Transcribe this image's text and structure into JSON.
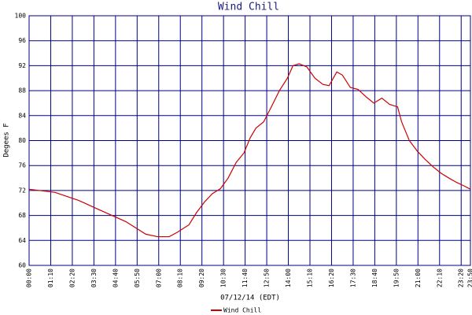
{
  "chart_data": {
    "type": "line",
    "title": "Wind Chill",
    "x_label": "07/12/14 (EDT)",
    "y_label": "Degees F",
    "xlim": [
      0,
      1430
    ],
    "ylim": [
      60,
      100
    ],
    "xticks": [
      {
        "value": 0,
        "label": "00:00"
      },
      {
        "value": 70,
        "label": "01:10"
      },
      {
        "value": 140,
        "label": "02:20"
      },
      {
        "value": 210,
        "label": "03:30"
      },
      {
        "value": 280,
        "label": "04:40"
      },
      {
        "value": 350,
        "label": "05:50"
      },
      {
        "value": 420,
        "label": "07:00"
      },
      {
        "value": 490,
        "label": "08:10"
      },
      {
        "value": 560,
        "label": "09:20"
      },
      {
        "value": 630,
        "label": "10:30"
      },
      {
        "value": 700,
        "label": "11:40"
      },
      {
        "value": 770,
        "label": "12:50"
      },
      {
        "value": 840,
        "label": "14:00"
      },
      {
        "value": 910,
        "label": "15:10"
      },
      {
        "value": 980,
        "label": "16:20"
      },
      {
        "value": 1050,
        "label": "17:30"
      },
      {
        "value": 1120,
        "label": "18:40"
      },
      {
        "value": 1190,
        "label": "19:50"
      },
      {
        "value": 1260,
        "label": "21:00"
      },
      {
        "value": 1330,
        "label": "22:10"
      },
      {
        "value": 1400,
        "label": "23:20"
      },
      {
        "value": 1430,
        "label": "23:50"
      }
    ],
    "yticks": [
      60,
      64,
      68,
      72,
      76,
      80,
      84,
      88,
      92,
      96,
      100
    ],
    "grid": true,
    "legend": "bottom",
    "series": [
      {
        "name": "Wind Chill",
        "color": "#cc0000",
        "x": [
          0,
          84,
          161,
          237,
          314,
          378,
          416,
          454,
          480,
          518,
          543,
          569,
          594,
          620,
          645,
          671,
          696,
          717,
          735,
          760,
          786,
          811,
          837,
          855,
          875,
          900,
          926,
          952,
          972,
          997,
          1015,
          1041,
          1066,
          1092,
          1117,
          1143,
          1168,
          1194,
          1207,
          1232,
          1258,
          1283,
          1309,
          1334,
          1360,
          1385,
          1411,
          1430
        ],
        "values": [
          72.2,
          71.7,
          70.4,
          68.7,
          67.0,
          65.0,
          64.6,
          64.6,
          65.3,
          66.5,
          68.5,
          70.2,
          71.5,
          72.3,
          74.0,
          76.5,
          78.0,
          80.5,
          82.0,
          83.0,
          85.5,
          88.0,
          90.0,
          92.0,
          92.3,
          91.8,
          90.0,
          89.0,
          88.8,
          91.0,
          90.5,
          88.5,
          88.2,
          87.0,
          86.0,
          86.8,
          85.8,
          85.4,
          83.0,
          80.0,
          78.3,
          77.0,
          75.8,
          74.8,
          74.0,
          73.3,
          72.7,
          72.2
        ]
      }
    ]
  }
}
